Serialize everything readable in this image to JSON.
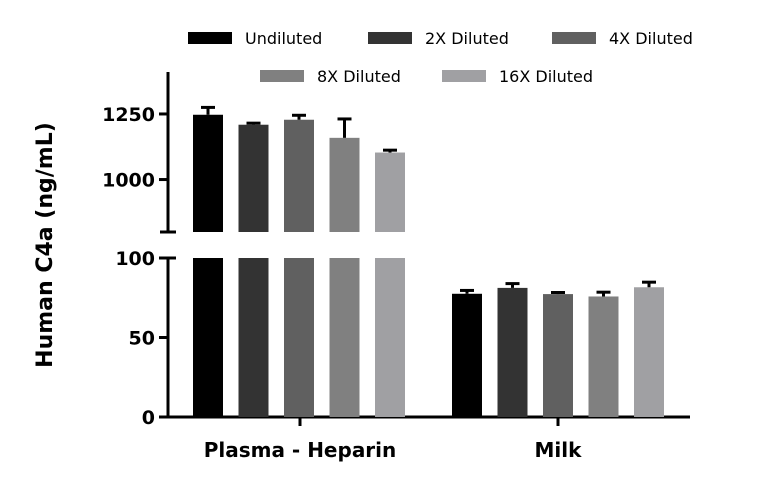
{
  "chart_data": {
    "type": "bar",
    "title": "",
    "xlabel": "",
    "ylabel": "Human C4a (ng/mL)",
    "categories": [
      "Plasma - Heparin",
      "Milk"
    ],
    "y_axis_broken": true,
    "ylim_lower_segment": [
      0,
      100
    ],
    "ylim_upper_segment": [
      800,
      1410
    ],
    "yticks_lower": [
      0,
      50,
      100
    ],
    "yticks_upper": [
      1000,
      1250
    ],
    "legend_position": "top",
    "grid": false,
    "series": [
      {
        "name": "Undiluted",
        "color": "#000000",
        "values": [
          1247,
          77.5
        ],
        "errors": [
          28,
          2.1
        ]
      },
      {
        "name": "2X Diluted",
        "color": "#333333",
        "values": [
          1209,
          81.2
        ],
        "errors": [
          6,
          2.7
        ]
      },
      {
        "name": "4X Diluted",
        "color": "#606060",
        "values": [
          1228,
          77.3
        ],
        "errors": [
          17,
          1.0
        ]
      },
      {
        "name": "8X Diluted",
        "color": "#808080",
        "values": [
          1159,
          75.8
        ],
        "errors": [
          72,
          2.7
        ]
      },
      {
        "name": "16X Diluted",
        "color": "#a0a0a3",
        "values": [
          1103,
          81.6
        ],
        "errors": [
          9,
          3.2
        ]
      }
    ]
  }
}
